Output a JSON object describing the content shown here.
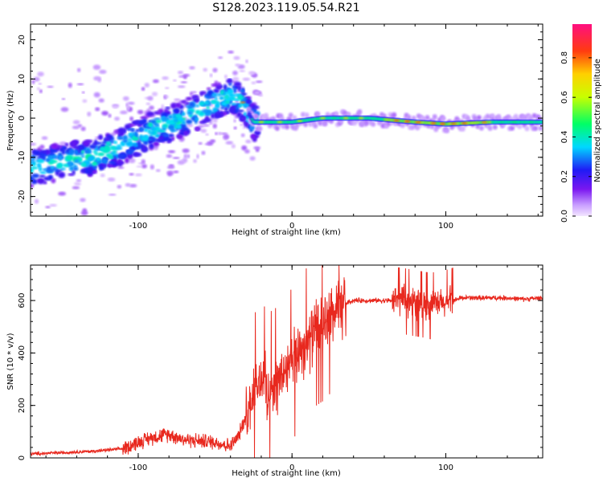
{
  "title": "S128.2023.119.05.54.R21",
  "chart_data": [
    {
      "type": "heatmap",
      "xlabel": "Height of straight line (km)",
      "ylabel": "Frequency (Hz)",
      "xlim": [
        -170,
        163
      ],
      "ylim": [
        -25,
        24
      ],
      "x_ticks": [
        -100,
        0,
        100
      ],
      "y_ticks": [
        -20,
        -10,
        0,
        10,
        20
      ],
      "colorbar": {
        "label": "Normalized spectral amplitude",
        "ticks": [
          0.0,
          0.2,
          0.4,
          0.6,
          0.8
        ],
        "range": [
          0,
          0.97
        ]
      },
      "ridge": {
        "x": [
          -170,
          -150,
          -130,
          -110,
          -90,
          -70,
          -55,
          -40,
          -32,
          -25,
          -15,
          0,
          20,
          50,
          80,
          100,
          130,
          163
        ],
        "y": [
          -13,
          -11,
          -10,
          -7,
          -3,
          0,
          3,
          6,
          4,
          -1,
          -1,
          -1,
          0,
          0,
          -1,
          -1.5,
          -1,
          -1
        ]
      },
      "grid": false
    },
    {
      "type": "line",
      "xlabel": "Height of straight line (km)",
      "ylabel": "SNR (10 * v/v)",
      "xlim": [
        -170,
        163
      ],
      "ylim": [
        0,
        735
      ],
      "x_ticks": [
        -100,
        0,
        100
      ],
      "y_ticks": [
        0,
        200,
        400,
        600
      ],
      "series": [
        {
          "color": "#e8281e",
          "x": [
            -170,
            -150,
            -130,
            -110,
            -100,
            -90,
            -80,
            -70,
            -60,
            -50,
            -40,
            -35,
            -30,
            -25,
            -20,
            -15,
            -10,
            -5,
            0,
            5,
            10,
            15,
            20,
            25,
            30,
            35,
            40,
            50,
            60,
            70,
            80,
            90,
            100,
            110,
            120,
            130,
            140,
            150,
            163
          ],
          "y": [
            15,
            20,
            25,
            35,
            60,
            80,
            90,
            70,
            65,
            60,
            45,
            80,
            160,
            250,
            300,
            260,
            280,
            330,
            350,
            420,
            430,
            490,
            510,
            540,
            560,
            590,
            600,
            600,
            600,
            600,
            590,
            580,
            590,
            610,
            610,
            610,
            610,
            605,
            610
          ]
        }
      ],
      "grid": false
    }
  ]
}
